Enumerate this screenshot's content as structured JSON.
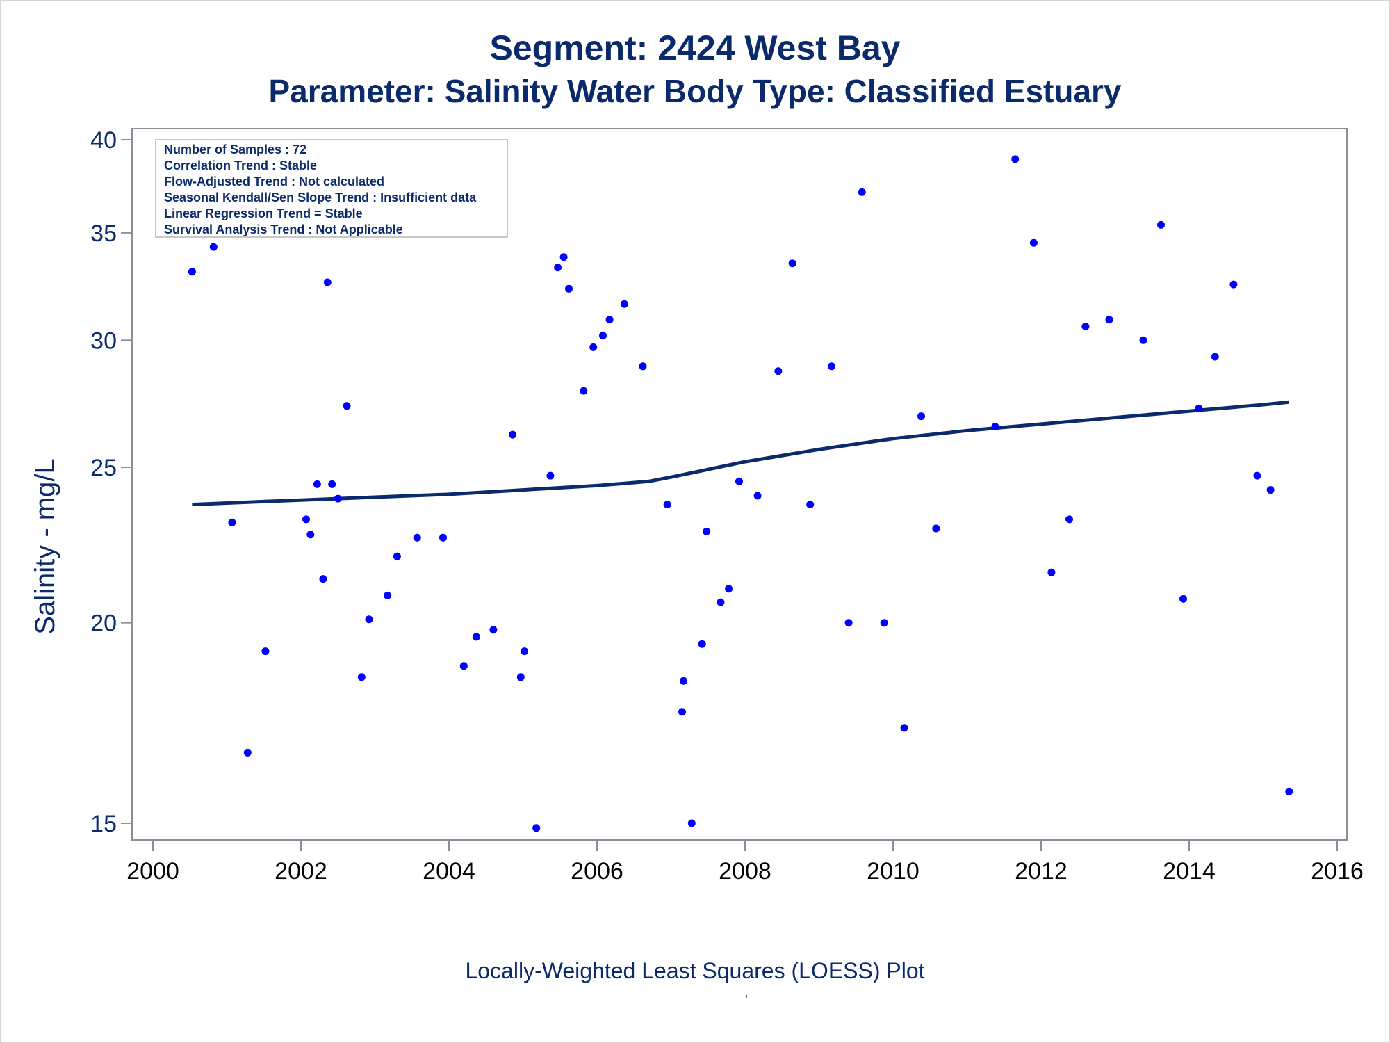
{
  "title_line1": "Segment: 2424  West Bay",
  "title_line2": "Parameter: Salinity   Water Body Type: Classified Estuary",
  "footnote": "Locally-Weighted Least Squares (LOESS) Plot",
  "footnote_mark": "'",
  "stats_box": {
    "lines": [
      "Number of Samples : 72",
      "Correlation Trend : Stable",
      "Flow-Adjusted Trend : Not calculated",
      "Seasonal Kendall/Sen Slope Trend : Insufficient data",
      "Linear Regression Trend = Stable",
      "Survival Analysis Trend : Not Applicable"
    ]
  },
  "colors": {
    "text": "#0b2a6b",
    "points": "#0000ff",
    "loess_line": "#0b2a6b",
    "axis": "#8a8f99"
  },
  "chart_data": {
    "type": "scatter",
    "xlabel": "",
    "ylabel": "Salinity - mg/L",
    "x_is_date_year": true,
    "xlim": [
      2000,
      2016
    ],
    "ylim": [
      15,
      40
    ],
    "y_scale": "log",
    "x_ticks": [
      2000,
      2002,
      2004,
      2006,
      2008,
      2010,
      2012,
      2014,
      2016
    ],
    "x_tick_labels": [
      "2000",
      "2002",
      "2004",
      "2006",
      "2008",
      "2010",
      "2012",
      "2014",
      "2016"
    ],
    "y_ticks": [
      15,
      20,
      25,
      30,
      35,
      40
    ],
    "y_tick_labels": [
      "15",
      "20",
      "25",
      "30",
      "35",
      "40"
    ],
    "grid": false,
    "points": [
      {
        "x": 2000.53,
        "y": 33.1
      },
      {
        "x": 2000.82,
        "y": 34.3
      },
      {
        "x": 2001.07,
        "y": 23.1
      },
      {
        "x": 2001.28,
        "y": 16.6
      },
      {
        "x": 2001.52,
        "y": 19.2
      },
      {
        "x": 2002.07,
        "y": 23.2
      },
      {
        "x": 2002.13,
        "y": 22.7
      },
      {
        "x": 2002.22,
        "y": 24.4
      },
      {
        "x": 2002.3,
        "y": 21.3
      },
      {
        "x": 2002.36,
        "y": 32.6
      },
      {
        "x": 2002.42,
        "y": 24.4
      },
      {
        "x": 2002.5,
        "y": 23.9
      },
      {
        "x": 2002.62,
        "y": 27.3
      },
      {
        "x": 2002.82,
        "y": 18.5
      },
      {
        "x": 2002.92,
        "y": 20.1
      },
      {
        "x": 2003.17,
        "y": 20.8
      },
      {
        "x": 2003.3,
        "y": 22.0
      },
      {
        "x": 2003.57,
        "y": 22.6
      },
      {
        "x": 2003.92,
        "y": 22.6
      },
      {
        "x": 2004.2,
        "y": 18.8
      },
      {
        "x": 2004.37,
        "y": 19.6
      },
      {
        "x": 2004.6,
        "y": 19.8
      },
      {
        "x": 2004.86,
        "y": 26.2
      },
      {
        "x": 2004.97,
        "y": 18.5
      },
      {
        "x": 2005.02,
        "y": 19.2
      },
      {
        "x": 2005.18,
        "y": 14.9
      },
      {
        "x": 2005.37,
        "y": 24.7
      },
      {
        "x": 2005.47,
        "y": 33.3
      },
      {
        "x": 2005.55,
        "y": 33.8
      },
      {
        "x": 2005.62,
        "y": 32.3
      },
      {
        "x": 2005.82,
        "y": 27.9
      },
      {
        "x": 2005.95,
        "y": 29.7
      },
      {
        "x": 2006.08,
        "y": 30.2
      },
      {
        "x": 2006.17,
        "y": 30.9
      },
      {
        "x": 2006.37,
        "y": 31.6
      },
      {
        "x": 2006.62,
        "y": 28.9
      },
      {
        "x": 2006.95,
        "y": 23.7
      },
      {
        "x": 2007.15,
        "y": 17.6
      },
      {
        "x": 2007.17,
        "y": 18.4
      },
      {
        "x": 2007.28,
        "y": 15.0
      },
      {
        "x": 2007.42,
        "y": 19.4
      },
      {
        "x": 2007.48,
        "y": 22.8
      },
      {
        "x": 2007.67,
        "y": 20.6
      },
      {
        "x": 2007.78,
        "y": 21.0
      },
      {
        "x": 2007.92,
        "y": 24.5
      },
      {
        "x": 2008.17,
        "y": 24.0
      },
      {
        "x": 2008.45,
        "y": 28.7
      },
      {
        "x": 2008.64,
        "y": 33.5
      },
      {
        "x": 2008.88,
        "y": 23.7
      },
      {
        "x": 2009.17,
        "y": 28.9
      },
      {
        "x": 2009.4,
        "y": 20.0
      },
      {
        "x": 2009.58,
        "y": 37.1
      },
      {
        "x": 2009.88,
        "y": 20.0
      },
      {
        "x": 2010.15,
        "y": 17.2
      },
      {
        "x": 2010.38,
        "y": 26.9
      },
      {
        "x": 2010.58,
        "y": 22.9
      },
      {
        "x": 2011.38,
        "y": 26.5
      },
      {
        "x": 2011.65,
        "y": 38.9
      },
      {
        "x": 2011.9,
        "y": 34.5
      },
      {
        "x": 2012.14,
        "y": 21.5
      },
      {
        "x": 2012.38,
        "y": 23.2
      },
      {
        "x": 2012.6,
        "y": 30.6
      },
      {
        "x": 2012.92,
        "y": 30.9
      },
      {
        "x": 2013.38,
        "y": 30.0
      },
      {
        "x": 2013.62,
        "y": 35.4
      },
      {
        "x": 2013.92,
        "y": 20.7
      },
      {
        "x": 2014.13,
        "y": 27.2
      },
      {
        "x": 2014.35,
        "y": 29.3
      },
      {
        "x": 2014.6,
        "y": 32.5
      },
      {
        "x": 2014.92,
        "y": 24.7
      },
      {
        "x": 2015.1,
        "y": 24.2
      },
      {
        "x": 2015.35,
        "y": 15.7
      }
    ],
    "loess": [
      {
        "x": 2000.53,
        "y": 23.7
      },
      {
        "x": 2001.0,
        "y": 23.75
      },
      {
        "x": 2002.0,
        "y": 23.85
      },
      {
        "x": 2003.0,
        "y": 23.95
      },
      {
        "x": 2004.0,
        "y": 24.05
      },
      {
        "x": 2005.0,
        "y": 24.2
      },
      {
        "x": 2006.0,
        "y": 24.35
      },
      {
        "x": 2006.7,
        "y": 24.5
      },
      {
        "x": 2007.0,
        "y": 24.65
      },
      {
        "x": 2008.0,
        "y": 25.2
      },
      {
        "x": 2009.0,
        "y": 25.65
      },
      {
        "x": 2010.0,
        "y": 26.05
      },
      {
        "x": 2011.0,
        "y": 26.35
      },
      {
        "x": 2012.0,
        "y": 26.6
      },
      {
        "x": 2013.0,
        "y": 26.85
      },
      {
        "x": 2014.0,
        "y": 27.1
      },
      {
        "x": 2015.0,
        "y": 27.35
      },
      {
        "x": 2015.35,
        "y": 27.45
      }
    ]
  }
}
